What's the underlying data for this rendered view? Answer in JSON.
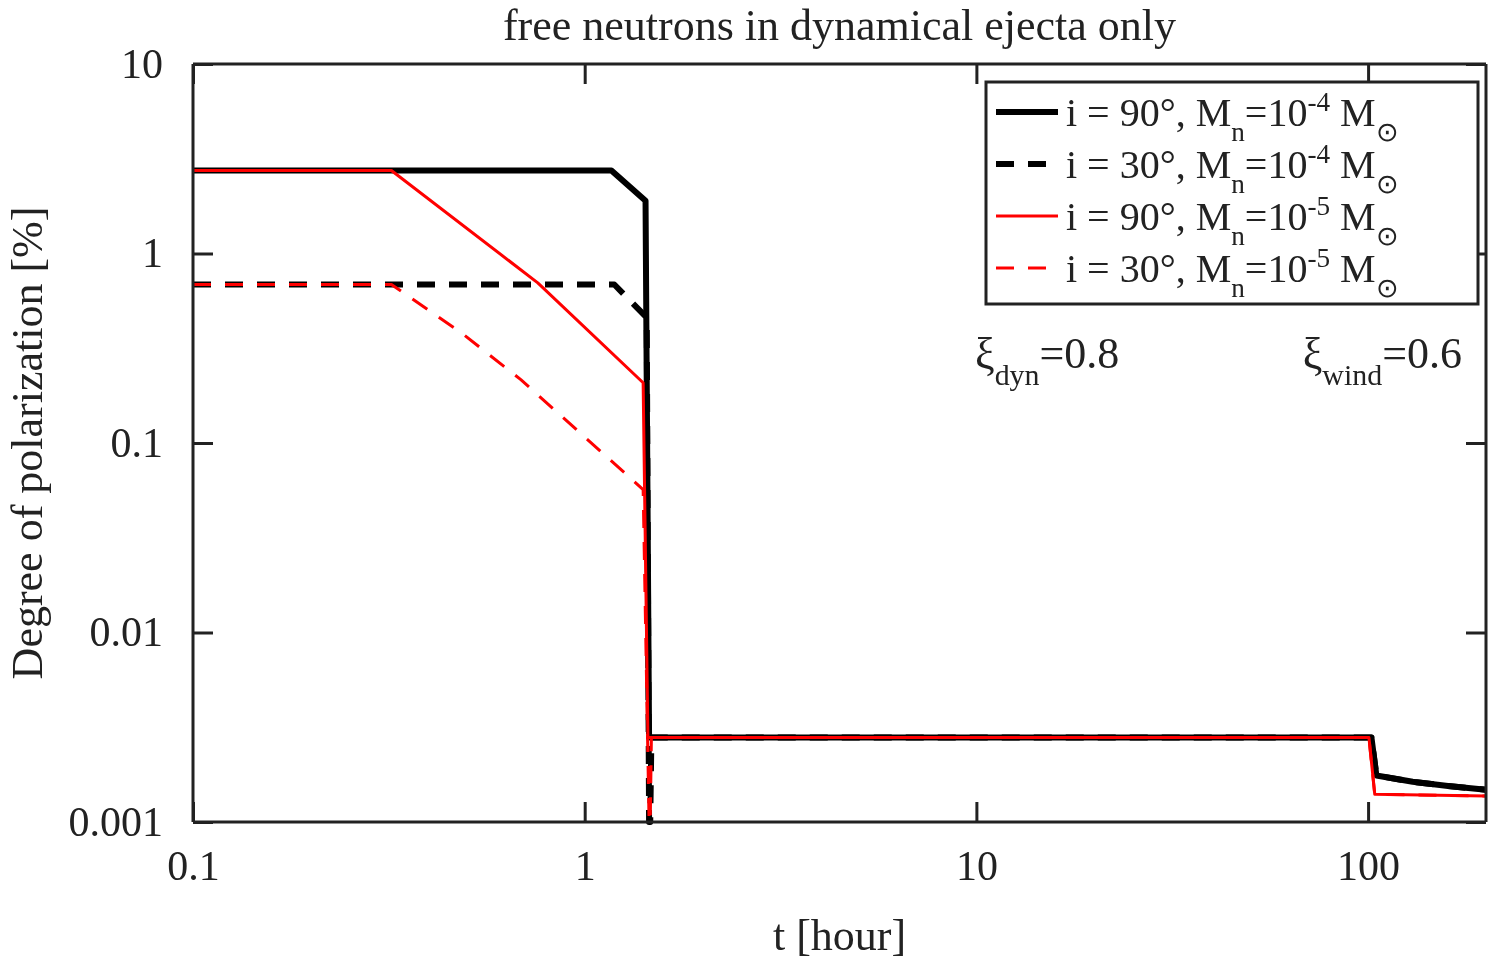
{
  "chart_data": {
    "type": "line",
    "title": "free neutrons in dynamical ejecta only",
    "xlabel": "t [hour]",
    "ylabel": "Degree of polarization [%]",
    "log": "xy",
    "xlim": [
      0.1,
      200
    ],
    "ylim": [
      0.001,
      10
    ],
    "xticks": [
      0.1,
      1,
      10,
      100
    ],
    "yticks": [
      0.001,
      0.01,
      0.1,
      1,
      10
    ],
    "grid": false,
    "legend": "top right",
    "marker": "none",
    "annotations": [
      "ξ$_{dyn}$=0.8",
      "ξ$_{wind}$=0.6"
    ],
    "series": [
      {
        "name": "i = 90°, M$_{n}$=10$^{-4}$ M$_{⊙}$",
        "color": "#000000",
        "line_style": "solid",
        "x": [
          0.1,
          1.17,
          1.43,
          1.46,
          10,
          102,
          105,
          130,
          160,
          200
        ],
        "values": [
          2.74,
          2.74,
          1.9,
          0.00279,
          0.00279,
          0.00279,
          0.00176,
          0.00163,
          0.00155,
          0.00148
        ]
      },
      {
        "name": "i = 30°, M$_{n}$=10$^{-4}$ M$_{⊙}$",
        "color": "#000000",
        "line_style": "dashed",
        "x": [
          0.1,
          1.19,
          1.44,
          1.46,
          1.47,
          1.48,
          10,
          102,
          105,
          130,
          160,
          200
        ],
        "values": [
          0.686,
          0.686,
          0.459,
          0.001,
          0.001,
          0.00279,
          0.00279,
          0.00279,
          0.00176,
          0.00163,
          0.00155,
          0.00148
        ]
      },
      {
        "name": "i = 90°, M$_{n}$=10$^{-5}$ M$_{⊙}$",
        "color": "#ff0000",
        "line_style": "solid",
        "x": [
          0.1,
          0.321,
          0.759,
          1.41,
          1.45,
          10,
          100.5,
          104,
          200
        ],
        "values": [
          2.74,
          2.74,
          0.7,
          0.208,
          0.00279,
          0.00279,
          0.00279,
          0.0014,
          0.00137
        ]
      },
      {
        "name": "i = 30°, M$_{n}$=10$^{-5}$ M$_{⊙}$",
        "color": "#ff0000",
        "line_style": "dashed",
        "x": [
          0.1,
          0.321,
          0.483,
          0.687,
          1.41,
          1.46,
          1.47,
          1.48,
          10,
          100.5,
          104,
          200
        ],
        "values": [
          0.686,
          0.686,
          0.383,
          0.216,
          0.0568,
          0.001,
          0.001,
          0.00279,
          0.00279,
          0.00279,
          0.0014,
          0.00137
        ]
      }
    ]
  }
}
